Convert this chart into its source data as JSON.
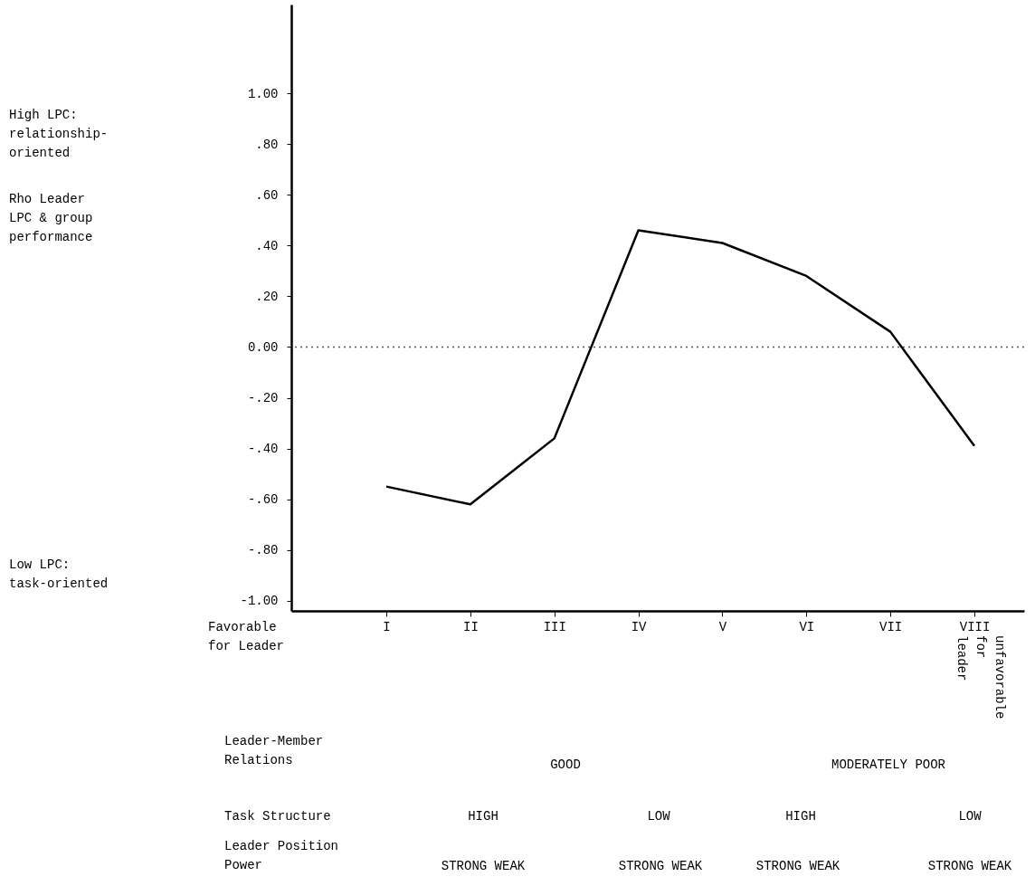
{
  "chart_data": {
    "type": "line",
    "categories": [
      "I",
      "II",
      "III",
      "IV",
      "V",
      "VI",
      "VII",
      "VIII"
    ],
    "series": [
      {
        "color": "#000000",
        "values": [
          -0.55,
          -0.62,
          -0.36,
          0.46,
          0.41,
          0.28,
          0.06,
          -0.39
        ]
      }
    ],
    "ylim": [
      -1.04,
      1.35
    ],
    "yticks": [
      {
        "value": -1,
        "label": "-1.00"
      },
      {
        "value": -0.8,
        "label": "-.80"
      },
      {
        "value": -0.6,
        "label": "-.60"
      },
      {
        "value": -0.4,
        "label": "-.40"
      },
      {
        "value": -0.2,
        "label": "-.20"
      },
      {
        "value": 0,
        "label": "0.00"
      },
      {
        "value": 0.2,
        "label": ".20"
      },
      {
        "value": 0.4,
        "label": ".40"
      },
      {
        "value": 0.6,
        "label": ".60"
      },
      {
        "value": 0.8,
        "label": ".80"
      },
      {
        "value": 1,
        "label": "1.00"
      }
    ],
    "ref_lines": [
      {
        "axis": "y",
        "value": 0,
        "line_style": "dotted",
        "color": "#555555"
      }
    ],
    "grid": false,
    "marker": "none",
    "line_style": "solid",
    "annotations": [
      "High LPC: relationship-oriented",
      "Rho Leader LPC & group performance",
      "Low LPC: task-oriented",
      "Favorable for Leader",
      "unfavorable for leader",
      "Leader-Member Relations",
      "GOOD",
      "MODERATELY POOR",
      "Task Structure",
      "HIGH",
      "LOW",
      "HIGH",
      "LOW",
      "Leader Position Power",
      "STRONG WEAK",
      "STRONG WEAK",
      "STRONG WEAK",
      "STRONG WEAK"
    ]
  }
}
